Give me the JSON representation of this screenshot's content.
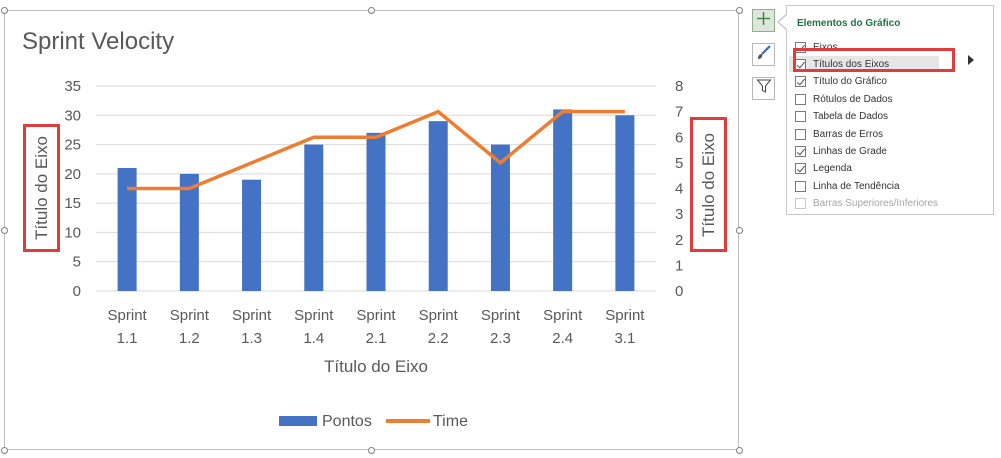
{
  "chart_data": {
    "type": "bar",
    "title": "Sprint Velocity",
    "categories": [
      [
        "Sprint",
        "1.1"
      ],
      [
        "Sprint",
        "1.2"
      ],
      [
        "Sprint",
        "1.3"
      ],
      [
        "Sprint",
        "1.4"
      ],
      [
        "Sprint",
        "2.1"
      ],
      [
        "Sprint",
        "2.2"
      ],
      [
        "Sprint",
        "2.3"
      ],
      [
        "Sprint",
        "2.4"
      ],
      [
        "Sprint",
        "3.1"
      ]
    ],
    "series": [
      {
        "name": "Pontos",
        "type": "bar",
        "axis": "primary",
        "color": "#4472c4",
        "values": [
          21,
          20,
          19,
          25,
          27,
          29,
          25,
          31,
          30
        ]
      },
      {
        "name": "Time",
        "type": "line",
        "axis": "secondary",
        "color": "#ed7d31",
        "values": [
          4,
          4,
          5,
          6,
          6,
          7,
          5,
          7,
          7
        ]
      }
    ],
    "xlabel": "Título do Eixo",
    "ylabel": "Título do Eixo",
    "y2label": "Título do Eixo",
    "ylim": [
      0,
      35
    ],
    "yticks": [
      "0",
      "5",
      "10",
      "15",
      "20",
      "25",
      "30",
      "35"
    ],
    "y2lim": [
      0,
      8
    ],
    "y2ticks": [
      "0",
      "1",
      "2",
      "3",
      "4",
      "5",
      "6",
      "7",
      "8"
    ],
    "grid": true,
    "legend": "bottom"
  },
  "panel": {
    "title": "Elementos do Gráfico",
    "items": [
      {
        "label": "Eixos",
        "checked": true,
        "disabled": false
      },
      {
        "label": "Títulos dos Eixos",
        "checked": true,
        "disabled": false
      },
      {
        "label": "Título do Gráfico",
        "checked": true,
        "disabled": false
      },
      {
        "label": "Rótulos de Dados",
        "checked": false,
        "disabled": false
      },
      {
        "label": "Tabela de Dados",
        "checked": false,
        "disabled": false
      },
      {
        "label": "Barras de Erros",
        "checked": false,
        "disabled": false
      },
      {
        "label": "Linhas de Grade",
        "checked": true,
        "disabled": false
      },
      {
        "label": "Legenda",
        "checked": true,
        "disabled": false
      },
      {
        "label": "Linha de Tendência",
        "checked": false,
        "disabled": false
      },
      {
        "label": "Barras Superiores/Inferiores",
        "checked": false,
        "disabled": true
      }
    ]
  },
  "toolbar": {
    "buttons": [
      {
        "icon": "plus-icon"
      },
      {
        "icon": "paintbrush-icon"
      },
      {
        "icon": "filter-icon"
      }
    ]
  },
  "colors": {
    "accent": "#217346",
    "highlight": "#e03c3c",
    "bar": "#4472c4",
    "line": "#ed7d31"
  }
}
